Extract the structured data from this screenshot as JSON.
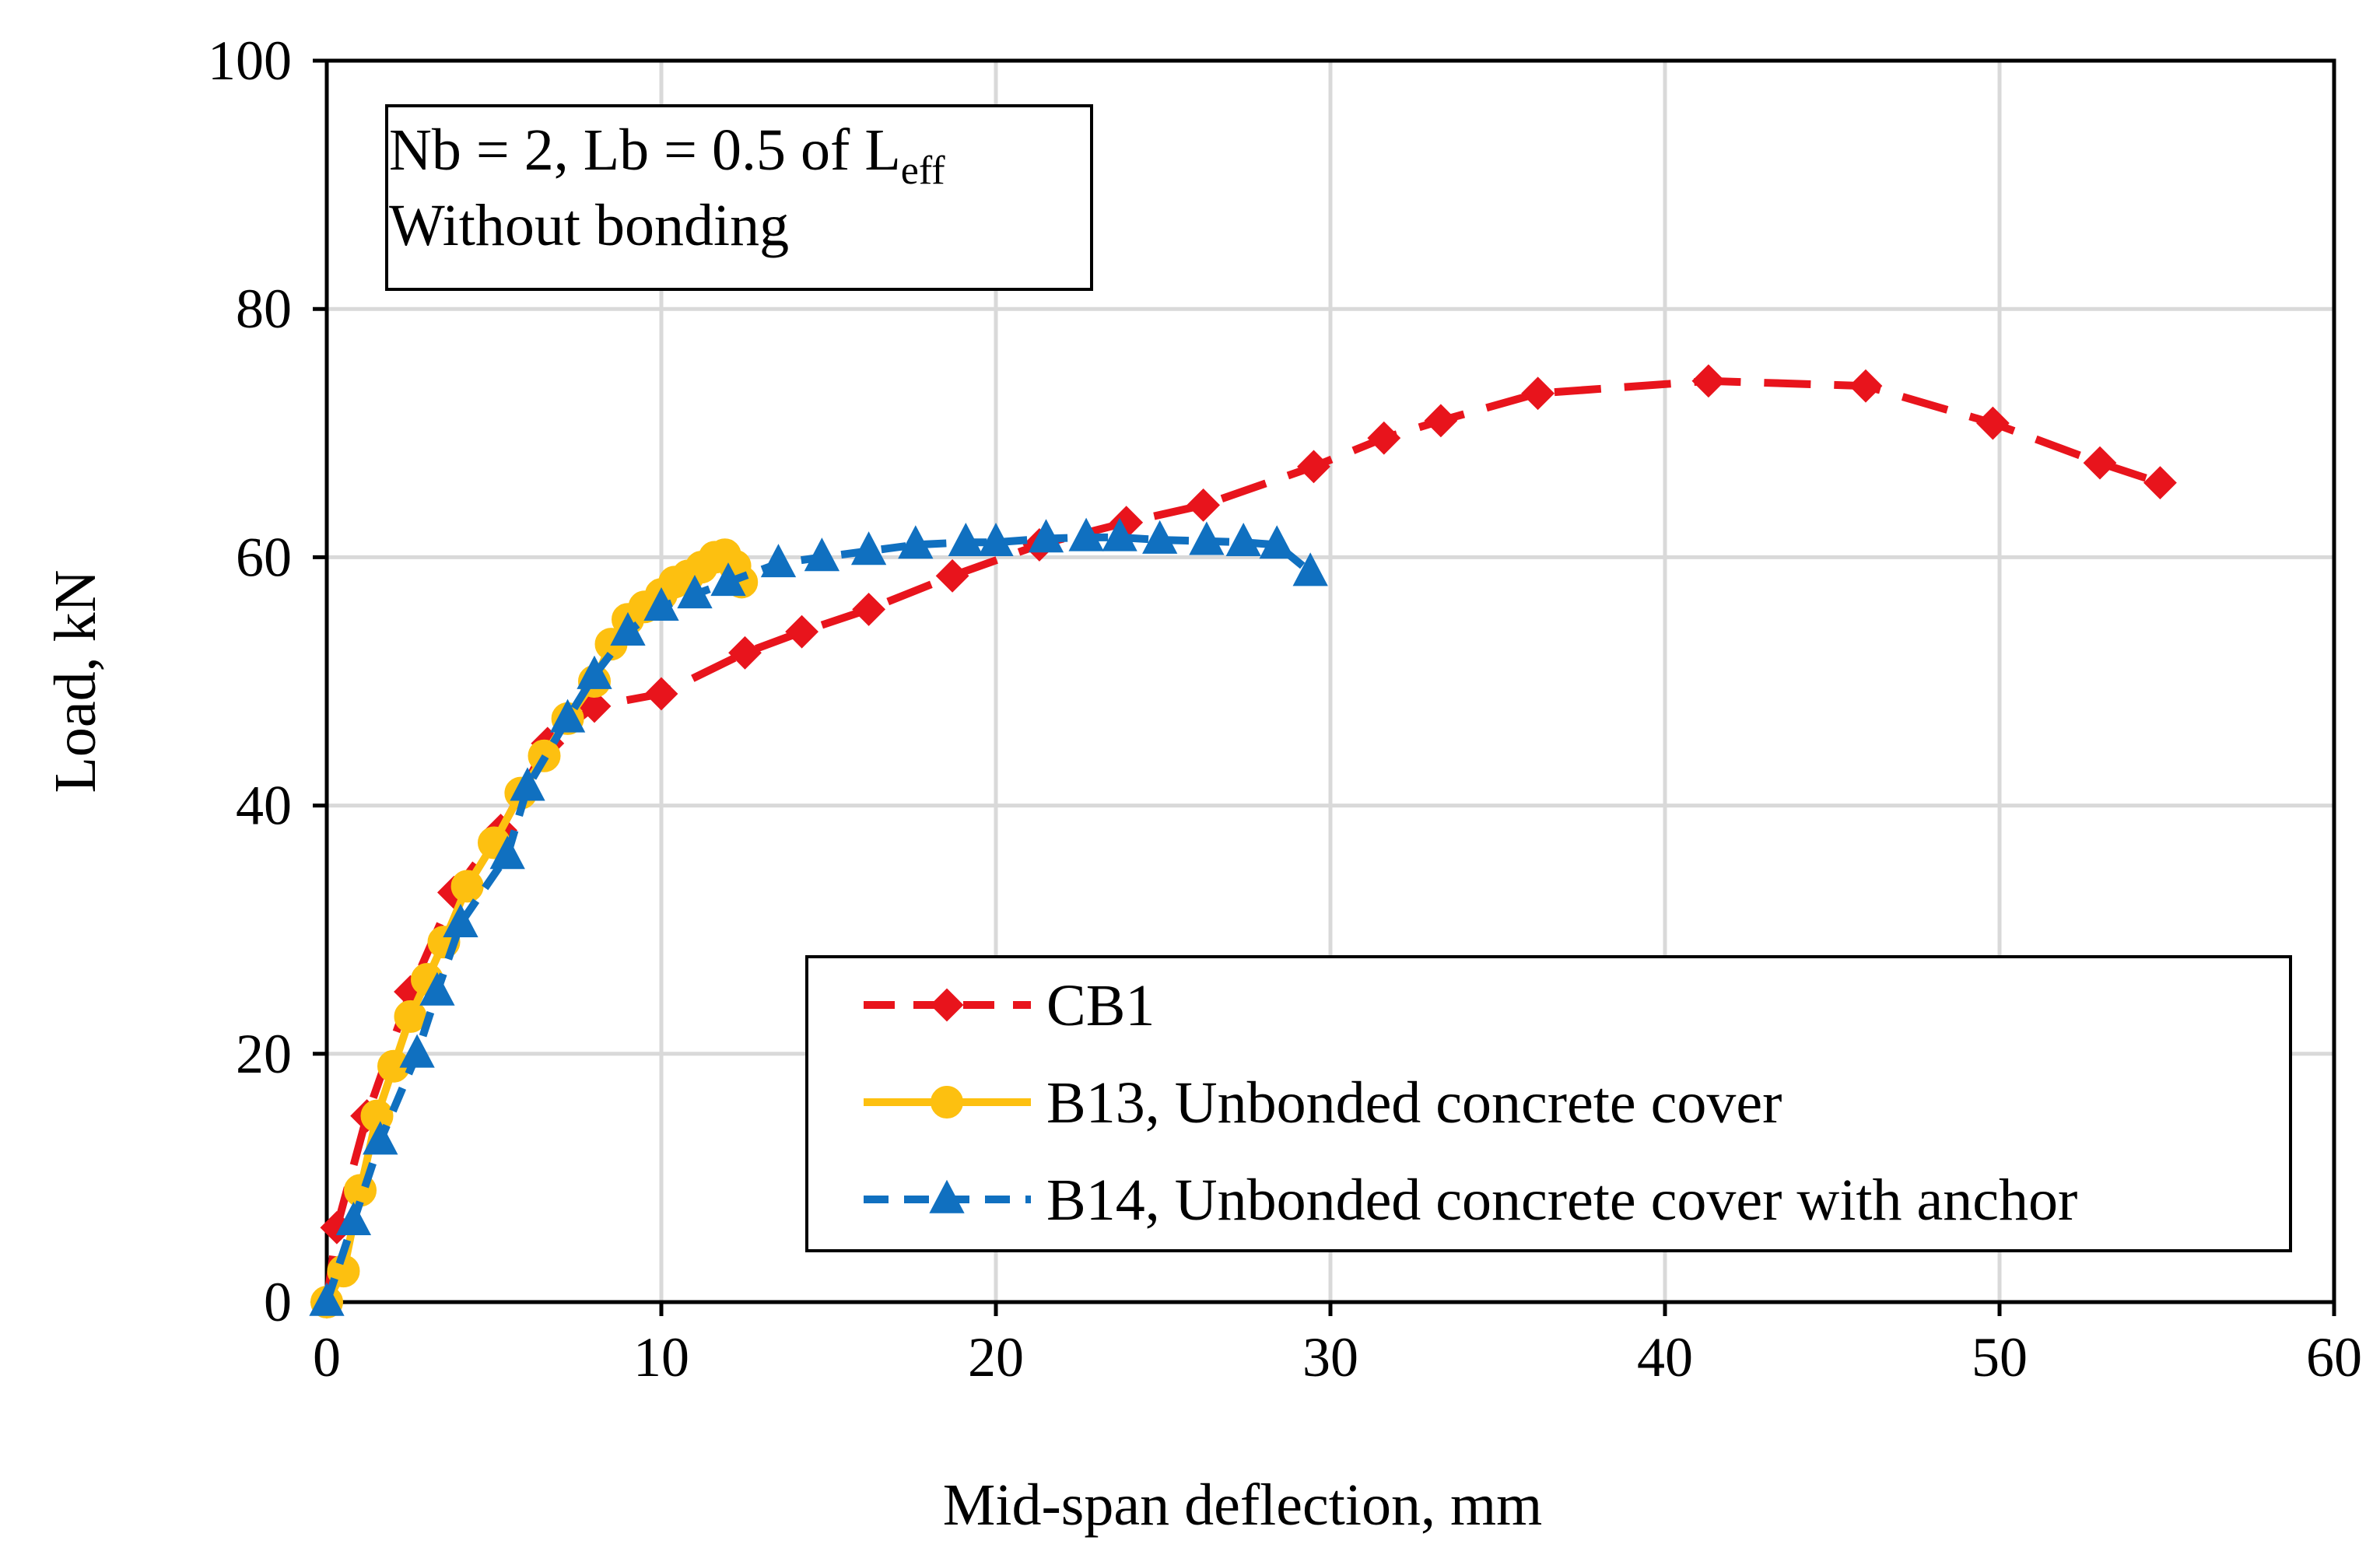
{
  "chart_data": {
    "type": "line",
    "xlabel": "Mid-span deflection, mm",
    "ylabel": "Load,  kN",
    "xlim": [
      0,
      60
    ],
    "ylim": [
      0,
      100
    ],
    "xticks": [
      0,
      10,
      20,
      30,
      40,
      50,
      60
    ],
    "yticks": [
      0,
      20,
      40,
      60,
      80,
      100
    ],
    "xtick_labels": [
      "0",
      "10",
      "20",
      "30",
      "40",
      "50",
      "60"
    ],
    "ytick_labels": [
      "0",
      "20",
      "40",
      "60",
      "80",
      "100"
    ],
    "grid": true,
    "legend_position": "bottom-right",
    "annotation": {
      "line1_main": "Nb = 2, Lb = 0.5 of L",
      "line1_sub": "eff",
      "line2": "Without bonding"
    },
    "series": [
      {
        "name": "CB1",
        "color": "#e8141c",
        "marker": "diamond",
        "line_style": "dashed",
        "x": [
          0,
          0.3,
          1.2,
          2.5,
          3.8,
          5.2,
          6.6,
          8.0,
          10.0,
          12.5,
          14.2,
          16.2,
          18.7,
          21.3,
          23.9,
          26.2,
          29.5,
          31.6,
          33.3,
          36.2,
          41.3,
          46.0,
          49.8,
          53.0,
          54.8
        ],
        "y": [
          0,
          6,
          15,
          25,
          33,
          38,
          45,
          48,
          49,
          52.3,
          54,
          55.8,
          58.5,
          61,
          62.8,
          64.2,
          67.3,
          69.6,
          71,
          73.2,
          74.2,
          73.8,
          70.8,
          67.6,
          66
        ]
      },
      {
        "name": "B13, Unbonded concrete cover",
        "color": "#fdc010",
        "marker": "circle",
        "line_style": "solid",
        "x": [
          0,
          0.5,
          1.0,
          1.5,
          2.0,
          2.5,
          3.0,
          3.5,
          4.2,
          5.0,
          5.8,
          6.5,
          7.2,
          8.0,
          8.5,
          9.0,
          9.5,
          10.0,
          10.4,
          10.8,
          11.2,
          11.6,
          11.9,
          12.2,
          12.4
        ],
        "y": [
          0,
          2.5,
          9,
          15,
          19,
          23,
          26,
          29,
          33.5,
          37,
          41,
          44,
          47,
          50,
          53,
          55,
          56,
          57,
          58,
          58.5,
          59.2,
          60,
          60.2,
          59.3,
          58
        ]
      },
      {
        "name": "B14, Unbonded concrete cover with anchor",
        "color": "#1070c0",
        "marker": "triangle",
        "line_style": "dashed",
        "x": [
          0,
          0.8,
          1.6,
          2.7,
          3.3,
          4.0,
          5.4,
          6.0,
          7.2,
          8.0,
          9.0,
          10.0,
          11.0,
          12.0,
          13.5,
          14.8,
          16.2,
          17.6,
          19.1,
          20.0,
          21.5,
          22.7,
          23.7,
          24.9,
          26.3,
          27.4,
          28.4,
          29.4
        ],
        "y": [
          0,
          6.5,
          13,
          20,
          25,
          30.5,
          36,
          41.5,
          47,
          50.5,
          54,
          56,
          57,
          58,
          59.5,
          60,
          60.5,
          61,
          61.2,
          61.2,
          61.5,
          61.6,
          61.6,
          61.4,
          61.3,
          61.2,
          61,
          58.8
        ]
      }
    ]
  }
}
